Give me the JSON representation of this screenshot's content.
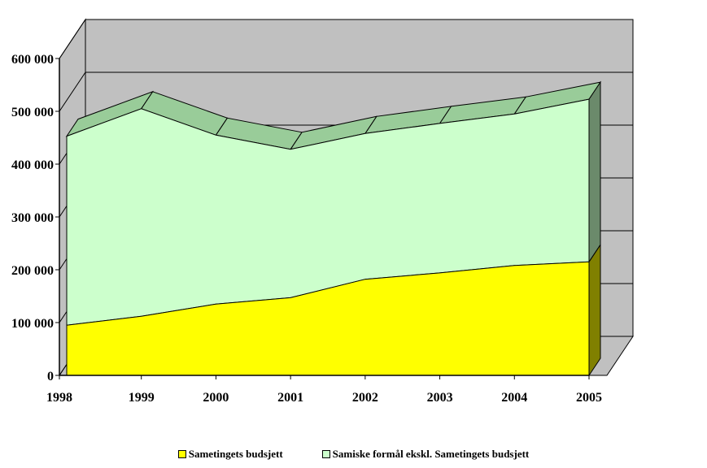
{
  "chart_data": {
    "type": "area",
    "stacked": true,
    "three_d": true,
    "title": "",
    "xlabel": "",
    "ylabel": "",
    "categories": [
      "1998",
      "1999",
      "2000",
      "2001",
      "2002",
      "2003",
      "2004",
      "2005"
    ],
    "ylim": [
      0,
      600000
    ],
    "yticks": [
      0,
      100000,
      200000,
      300000,
      400000,
      500000,
      600000
    ],
    "ytick_labels": [
      "0",
      "100 000",
      "200 000",
      "300 000",
      "400 000",
      "500 000",
      "600 000"
    ],
    "grid": true,
    "legend_position": "bottom",
    "series": [
      {
        "name": "Sametingets budsjett",
        "color": "#ffff00",
        "side_color": "#808000",
        "values": [
          95000,
          112000,
          135000,
          147000,
          182000,
          194000,
          208000,
          215000
        ]
      },
      {
        "name": "Samiske formål ekskl. Sametingets budsjett",
        "color": "#ccffcc",
        "top_color": "#99cc99",
        "side_color": "#6b8a6b",
        "values": [
          358000,
          393000,
          320000,
          281000,
          276000,
          283000,
          287000,
          308000
        ]
      }
    ],
    "wall_color": "#c0c0c0",
    "floor_color": "#c0c0c0"
  }
}
